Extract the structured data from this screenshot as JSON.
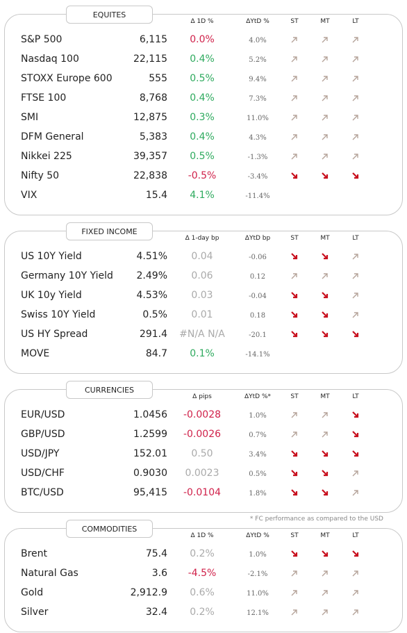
{
  "sections": [
    {
      "title": "EQUITES",
      "headers": [
        "Δ 1D %",
        "ΔYtD %",
        "ST",
        "MT",
        "LT"
      ],
      "rows": [
        {
          "name": "S&P 500",
          "value": "6,115",
          "change": "0.0%",
          "change_color": "#d0214a",
          "ytd": "4.0%",
          "trend": [
            "up",
            "up",
            "up"
          ]
        },
        {
          "name": "Nasdaq 100",
          "value": "22,115",
          "change": "0.4%",
          "change_color": "#2eaa5e",
          "ytd": "5.2%",
          "trend": [
            "up",
            "up",
            "up"
          ]
        },
        {
          "name": "STOXX Europe 600",
          "value": "555",
          "change": "0.5%",
          "change_color": "#2eaa5e",
          "ytd": "9.4%",
          "trend": [
            "up",
            "up",
            "up"
          ]
        },
        {
          "name": "FTSE 100",
          "value": "8,768",
          "change": "0.4%",
          "change_color": "#2eaa5e",
          "ytd": "7.3%",
          "trend": [
            "up",
            "up",
            "up"
          ]
        },
        {
          "name": "SMI",
          "value": "12,875",
          "change": "0.3%",
          "change_color": "#2eaa5e",
          "ytd": "11.0%",
          "trend": [
            "up",
            "up",
            "up"
          ]
        },
        {
          "name": "DFM General",
          "value": "5,383",
          "change": "0.4%",
          "change_color": "#2eaa5e",
          "ytd": "4.3%",
          "trend": [
            "up",
            "up",
            "up"
          ]
        },
        {
          "name": "Nikkei 225",
          "value": "39,357",
          "change": "0.5%",
          "change_color": "#2eaa5e",
          "ytd": "-1.3%",
          "trend": [
            "up",
            "up",
            "up"
          ]
        },
        {
          "name": "Nifty 50",
          "value": "22,838",
          "change": "-0.5%",
          "change_color": "#d0214a",
          "ytd": "-3.4%",
          "trend": [
            "down",
            "down",
            "down"
          ]
        },
        {
          "name": "VIX",
          "value": "15.4",
          "change": "4.1%",
          "change_color": "#2eaa5e",
          "ytd": "-11.4%",
          "trend": []
        }
      ]
    },
    {
      "title": "FIXED INCOME",
      "headers": [
        "Δ 1-day bp",
        "ΔYtD bp",
        "ST",
        "MT",
        "LT"
      ],
      "rows": [
        {
          "name": "US 10Y Yield",
          "value": "4.51%",
          "change": "0.04",
          "change_color": "#aaaaaa",
          "ytd": "-0.06",
          "trend": [
            "down",
            "down",
            "up"
          ]
        },
        {
          "name": "Germany 10Y Yield",
          "value": "2.49%",
          "change": "0.06",
          "change_color": "#aaaaaa",
          "ytd": "0.12",
          "trend": [
            "up",
            "up",
            "up"
          ]
        },
        {
          "name": "UK 10y Yield",
          "value": "4.53%",
          "change": "0.03",
          "change_color": "#aaaaaa",
          "ytd": "-0.04",
          "trend": [
            "down",
            "down",
            "up"
          ]
        },
        {
          "name": "Swiss 10Y Yield",
          "value": "0.5%",
          "change": "0.01",
          "change_color": "#aaaaaa",
          "ytd": "0.18",
          "trend": [
            "down",
            "down",
            "up"
          ]
        },
        {
          "name": "US HY Spread",
          "value": "291.4",
          "change": "#N/A N/A",
          "change_color": "#aaaaaa",
          "ytd": "-20.1",
          "trend": [
            "down",
            "down",
            "down"
          ]
        },
        {
          "name": "MOVE",
          "value": "84.7",
          "change": "0.1%",
          "change_color": "#2eaa5e",
          "ytd": "-14.1%",
          "trend": []
        }
      ]
    },
    {
      "title": "CURRENCIES",
      "headers": [
        "Δ pips",
        "ΔYtD %*",
        "ST",
        "MT",
        "LT"
      ],
      "rows": [
        {
          "name": "EUR/USD",
          "value": "1.0456",
          "change": "-0.0028",
          "change_color": "#d0214a",
          "ytd": "1.0%",
          "trend": [
            "up",
            "up",
            "down"
          ]
        },
        {
          "name": "GBP/USD",
          "value": "1.2599",
          "change": "-0.0026",
          "change_color": "#d0214a",
          "ytd": "0.7%",
          "trend": [
            "up",
            "up",
            "down"
          ]
        },
        {
          "name": "USD/JPY",
          "value": "152.01",
          "change": "0.50",
          "change_color": "#aaaaaa",
          "ytd": "3.4%",
          "trend": [
            "down",
            "down",
            "down"
          ]
        },
        {
          "name": "USD/CHF",
          "value": "0.9030",
          "change": "0.0023",
          "change_color": "#aaaaaa",
          "ytd": "0.5%",
          "trend": [
            "down",
            "down",
            "up"
          ]
        },
        {
          "name": "BTC/USD",
          "value": "95,415",
          "change": "-0.0104",
          "change_color": "#d0214a",
          "ytd": "1.8%",
          "trend": [
            "down",
            "down",
            "up"
          ]
        }
      ],
      "footnote": "* FC performance as compared to the USD"
    },
    {
      "title": "COMMODITIES",
      "headers": [
        "Δ 1D %",
        "ΔYtD %",
        "ST",
        "MT",
        "LT"
      ],
      "rows": [
        {
          "name": "Brent",
          "value": "75.4",
          "change": "0.2%",
          "change_color": "#aaaaaa",
          "ytd": "1.0%",
          "trend": [
            "down",
            "down",
            "down"
          ]
        },
        {
          "name": "Natural Gas",
          "value": "3.6",
          "change": "-4.5%",
          "change_color": "#d0214a",
          "ytd": "-2.1%",
          "trend": [
            "up",
            "up",
            "up"
          ]
        },
        {
          "name": "Gold",
          "value": "2,912.9",
          "change": "0.6%",
          "change_color": "#aaaaaa",
          "ytd": "11.0%",
          "trend": [
            "up",
            "up",
            "up"
          ]
        },
        {
          "name": "Silver",
          "value": "32.4",
          "change": "0.2%",
          "change_color": "#aaaaaa",
          "ytd": "12.1%",
          "trend": [
            "up",
            "up",
            "up"
          ]
        }
      ]
    }
  ]
}
